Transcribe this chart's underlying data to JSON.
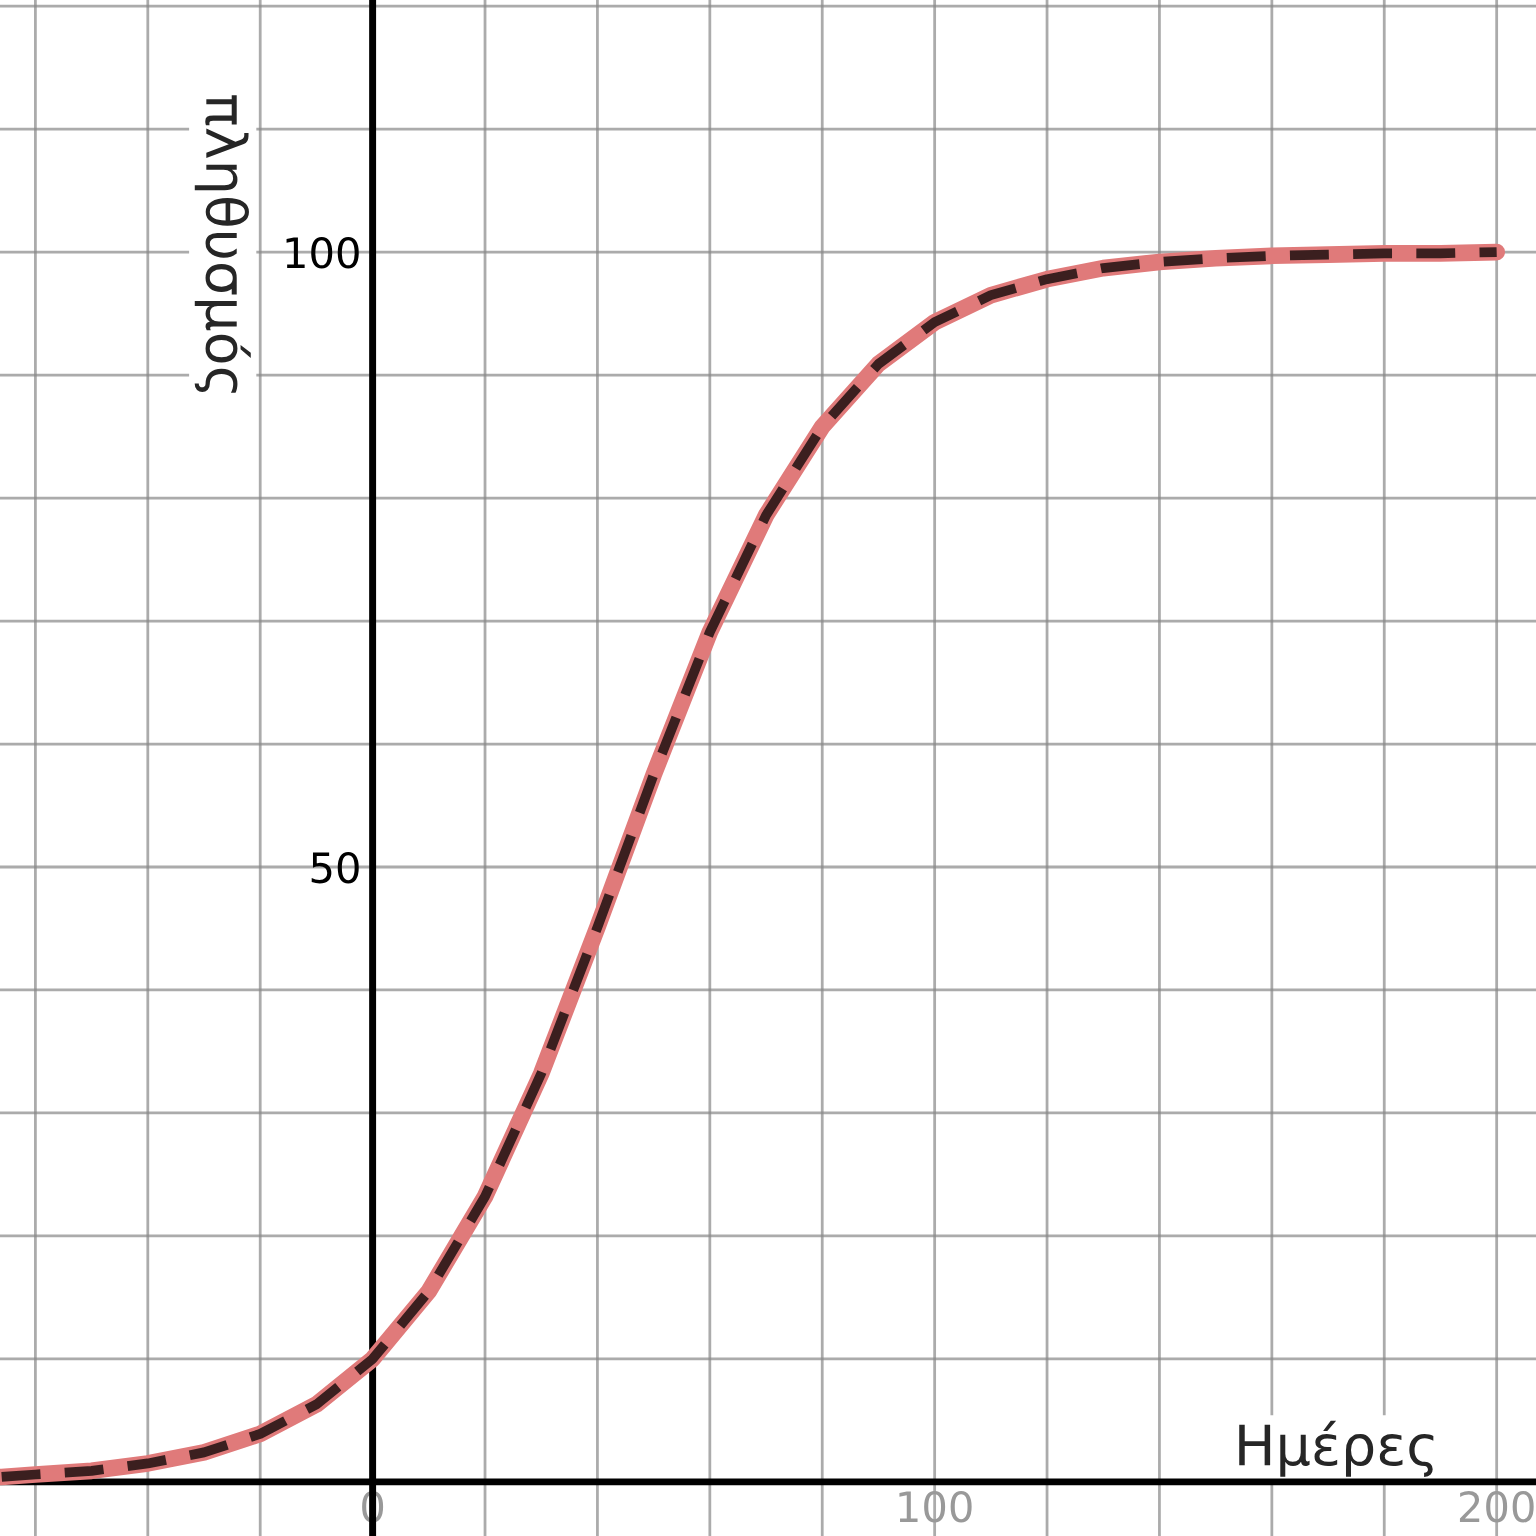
{
  "chart_data": {
    "type": "line",
    "xlabel": "Ημέρες",
    "ylabel": "πληθυσμός",
    "x": [
      -66,
      -60,
      -50,
      -40,
      -30,
      -20,
      -10,
      0,
      10,
      20,
      30,
      40,
      50,
      60,
      70,
      80,
      90,
      100,
      110,
      120,
      130,
      140,
      150,
      160,
      170,
      180,
      190,
      200
    ],
    "series": [
      {
        "color": "#e07a7a",
        "line_style": "solid",
        "values": [
          0.4,
          0.6,
          0.9,
          1.5,
          2.4,
          3.9,
          6.3,
          10,
          15.5,
          23.2,
          33.2,
          45.1,
          57.5,
          69.1,
          78.6,
          85.8,
          90.9,
          94.3,
          96.5,
          97.8,
          98.7,
          99.2,
          99.5,
          99.7,
          99.8,
          99.9,
          99.9,
          100
        ]
      },
      {
        "color": "#3b1f1f",
        "line_style": "dashed",
        "values": [
          0.4,
          0.6,
          0.9,
          1.5,
          2.4,
          3.9,
          6.3,
          10,
          15.5,
          23.2,
          33.2,
          45.1,
          57.5,
          69.1,
          78.6,
          85.8,
          90.9,
          94.3,
          96.5,
          97.8,
          98.7,
          99.2,
          99.5,
          99.7,
          99.8,
          99.9,
          99.9,
          100
        ]
      }
    ],
    "xlim": [
      -66.3,
      207
    ],
    "ylim": [
      -4.4,
      120.5
    ],
    "xticks": [
      {
        "value": -60,
        "label": null
      },
      {
        "value": -40,
        "label": null
      },
      {
        "value": -20,
        "label": null
      },
      0,
      {
        "value": 20,
        "label": null
      },
      {
        "value": 40,
        "label": null
      },
      {
        "value": 60,
        "label": null
      },
      {
        "value": 80,
        "label": null
      },
      100,
      {
        "value": 120,
        "label": null
      },
      {
        "value": 140,
        "label": null
      },
      {
        "value": 160,
        "label": null
      },
      {
        "value": 180,
        "label": null
      },
      200
    ],
    "yticks": [
      {
        "value": 10,
        "label": null
      },
      {
        "value": 20,
        "label": null
      },
      {
        "value": 30,
        "label": null
      },
      {
        "value": 40,
        "label": null
      },
      50,
      {
        "value": 60,
        "label": null
      },
      {
        "value": 70,
        "label": null
      },
      {
        "value": 80,
        "label": null
      },
      {
        "value": 90,
        "label": null
      },
      100,
      {
        "value": 110,
        "label": null
      },
      {
        "value": 120,
        "label": null
      }
    ],
    "grid": true,
    "legend": false
  }
}
